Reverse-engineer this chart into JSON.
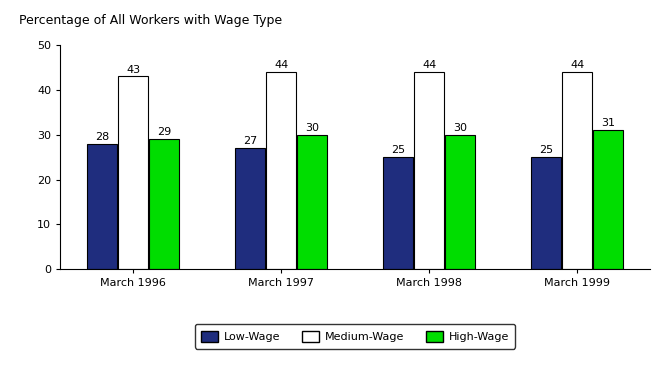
{
  "title": "Percentage of All Workers with Wage Type",
  "categories": [
    "March 1996",
    "March 1997",
    "March 1998",
    "March 1999"
  ],
  "series": {
    "Low-Wage": [
      28,
      27,
      25,
      25
    ],
    "Medium-Wage": [
      43,
      44,
      44,
      44
    ],
    "High-Wage": [
      29,
      30,
      30,
      31
    ]
  },
  "colors": {
    "Low-Wage": "#1f2d7e",
    "Medium-Wage": "#ffffff",
    "High-Wage": "#00dd00"
  },
  "bar_edgecolor": "#000000",
  "ylim": [
    0,
    50
  ],
  "yticks": [
    0,
    10,
    20,
    30,
    40,
    50
  ],
  "bar_width": 0.2,
  "title_fontsize": 9,
  "tick_fontsize": 8,
  "label_fontsize": 8,
  "legend_fontsize": 8,
  "background_color": "#ffffff",
  "figure_size": [
    6.7,
    3.74
  ]
}
